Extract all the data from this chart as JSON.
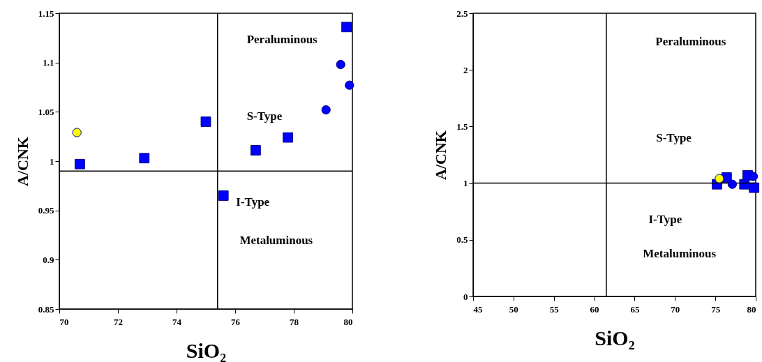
{
  "chart_data": [
    {
      "type": "scatter",
      "xlabel": "SiO₂",
      "ylabel": "A/CNK",
      "xlim": [
        70,
        80
      ],
      "ylim": [
        0.85,
        1.15
      ],
      "xticks": [
        70,
        72,
        74,
        76,
        78,
        80
      ],
      "yticks": [
        0.85,
        0.9,
        0.95,
        1,
        1.05,
        1.1,
        1.15
      ],
      "series": [
        {
          "marker": "square",
          "color": "#0000ff",
          "x": [
            70.7,
            72.9,
            75.0,
            76.7,
            77.8,
            79.8,
            75.6
          ],
          "values": [
            0.997,
            1.003,
            1.04,
            1.011,
            1.024,
            1.136,
            0.965
          ]
        },
        {
          "marker": "circle",
          "color": "#0000ff",
          "x": [
            79.6,
            79.9,
            79.1
          ],
          "values": [
            1.098,
            1.077,
            1.052
          ]
        },
        {
          "marker": "circle",
          "color": "#ffff00",
          "x": [
            70.6
          ],
          "values": [
            1.029
          ]
        }
      ],
      "ref_lines": [
        {
          "axis": "x",
          "value": 75.4,
          "color": "#000000"
        },
        {
          "axis": "y",
          "value": 0.99,
          "color": "#000000"
        }
      ],
      "annotations": [
        "Peraluminous",
        "S-Type",
        "I-Type",
        "Metaluminous"
      ]
    },
    {
      "type": "scatter",
      "xlabel": "SiO₂",
      "ylabel": "A/CNK",
      "xlim": [
        45,
        80
      ],
      "ylim": [
        0,
        2.5
      ],
      "xticks": [
        45,
        50,
        55,
        60,
        65,
        70,
        75,
        80
      ],
      "yticks": [
        0,
        0.5,
        1,
        1.5,
        2,
        2.5
      ],
      "series": [
        {
          "marker": "square",
          "color": "#0000ff",
          "x": [
            75.2,
            76.4,
            78.6,
            79.0,
            79.8
          ],
          "values": [
            0.99,
            1.05,
            0.99,
            1.07,
            0.96
          ]
        },
        {
          "marker": "circle",
          "color": "#0000ff",
          "x": [
            77.1,
            79.7
          ],
          "values": [
            0.99,
            1.06
          ]
        },
        {
          "marker": "circle",
          "color": "#ffff00",
          "x": [
            75.5
          ],
          "values": [
            1.04
          ]
        }
      ],
      "ref_lines": [
        {
          "axis": "x",
          "value": 61.5,
          "color": "#000000"
        },
        {
          "axis": "y",
          "value": 1,
          "color": "#000000"
        }
      ],
      "annotations": [
        "Peraluminous",
        "S-Type",
        "I-Type",
        "Metaluminous"
      ]
    }
  ]
}
